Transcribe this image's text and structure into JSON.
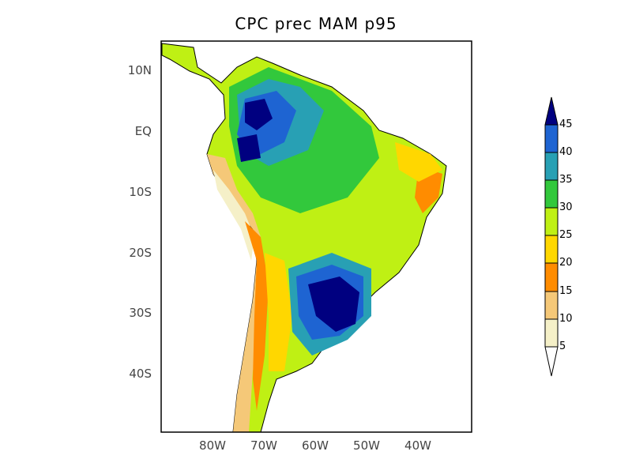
{
  "title": "CPC prec MAM  p95",
  "map": {
    "lon_range": [
      "90W",
      "30W"
    ],
    "lat_range": [
      "15N",
      "50S"
    ],
    "lat_ticks": [
      "10N",
      "EQ",
      "10S",
      "20S",
      "30S",
      "40S"
    ],
    "lon_ticks": [
      "80W",
      "70W",
      "60W",
      "50W",
      "40W"
    ]
  },
  "colorbar": {
    "levels": [
      "5",
      "10",
      "15",
      "20",
      "25",
      "30",
      "35",
      "40",
      "45"
    ],
    "colors": [
      "#ffffff",
      "#f5f0c8",
      "#f5c878",
      "#ff8c00",
      "#ffd700",
      "#bff014",
      "#32c83c",
      "#28a0b4",
      "#1e64d2",
      "#000080"
    ]
  }
}
